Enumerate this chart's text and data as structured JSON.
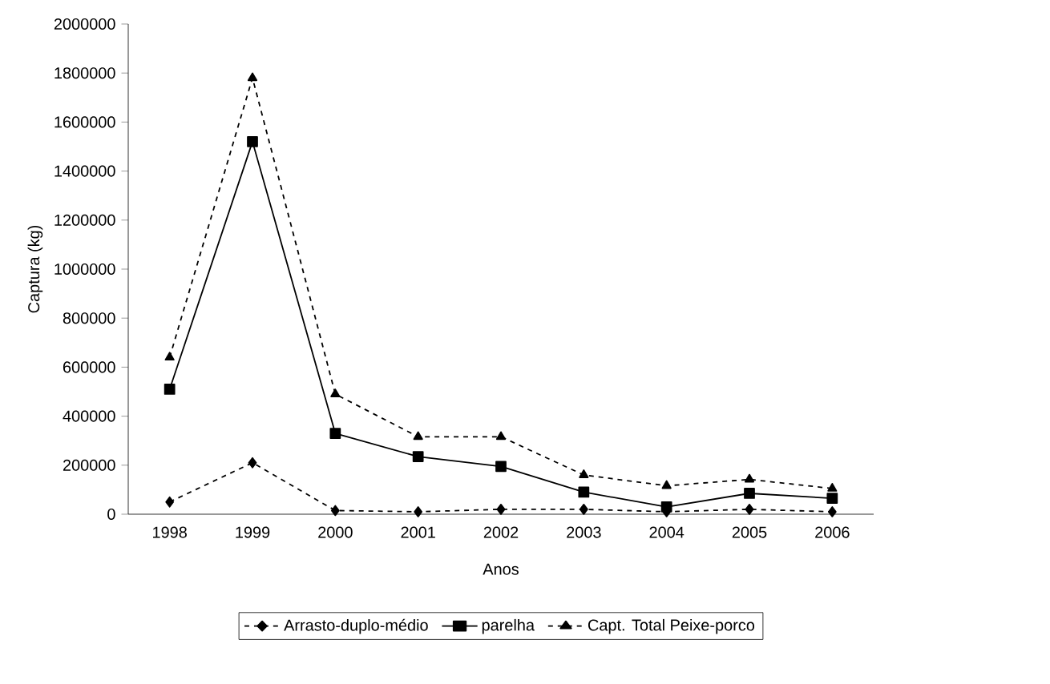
{
  "chart_data": {
    "type": "line",
    "xlabel": "Anos",
    "ylabel": "Captura (kg)",
    "categories": [
      "1998",
      "1999",
      "2000",
      "2001",
      "2002",
      "2003",
      "2004",
      "2005",
      "2006"
    ],
    "series": [
      {
        "name": "Arrasto-duplo-médio",
        "color": "#000000",
        "marker": "diamond",
        "line_style": "dashed",
        "values": [
          50000,
          210000,
          15000,
          10000,
          20000,
          20000,
          10000,
          20000,
          10000
        ]
      },
      {
        "name": "parelha",
        "color": "#000000",
        "marker": "square",
        "line_style": "solid",
        "values": [
          510000,
          1520000,
          330000,
          235000,
          195000,
          90000,
          30000,
          85000,
          65000
        ]
      },
      {
        "name": "Capt. Total Peixe-porco",
        "color": "#000000",
        "marker": "triangle",
        "line_style": "dashed",
        "values": [
          640000,
          1780000,
          490000,
          316000,
          316000,
          160000,
          116000,
          142000,
          105000
        ]
      }
    ],
    "ylim": [
      0,
      2000000
    ],
    "yticks": [
      0,
      200000,
      400000,
      600000,
      800000,
      1000000,
      1200000,
      1400000,
      1600000,
      1800000,
      2000000
    ],
    "grid": false,
    "legend": "bottom"
  }
}
